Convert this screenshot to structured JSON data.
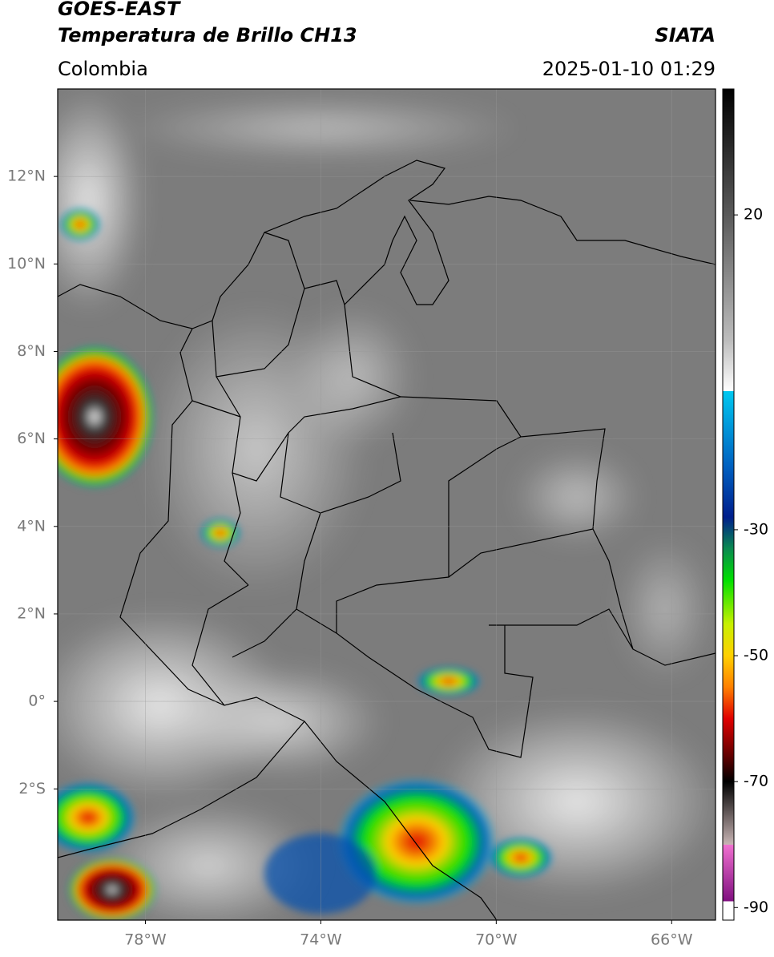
{
  "header": {
    "title": "GOES-EAST",
    "subtitle": "Temperatura de Brillo CH13",
    "source": "SIATA",
    "region": "Colombia",
    "datetime": "2025-01-10 01:29"
  },
  "map": {
    "xlim": [
      -80,
      -65
    ],
    "ylim": [
      -5,
      14
    ],
    "xticks": [
      {
        "value": -78,
        "label": "78°W"
      },
      {
        "value": -74,
        "label": "74°W"
      },
      {
        "value": -70,
        "label": "70°W"
      },
      {
        "value": -66,
        "label": "66°W"
      }
    ],
    "yticks": [
      {
        "value": 12,
        "label": "12°N"
      },
      {
        "value": 10,
        "label": "10°N"
      },
      {
        "value": 8,
        "label": "8°N"
      },
      {
        "value": 6,
        "label": "6°N"
      },
      {
        "value": 4,
        "label": "4°N"
      },
      {
        "value": 2,
        "label": "2°N"
      },
      {
        "value": 0,
        "label": "0°"
      },
      {
        "value": -2,
        "label": "2°S"
      }
    ],
    "grid": true
  },
  "colorbar": {
    "clim": [
      -92,
      40
    ],
    "ticks": [
      20,
      -30,
      -50,
      -70,
      -90
    ],
    "stops": [
      {
        "value": 40,
        "color": "#000000"
      },
      {
        "value": 20,
        "color": "#5a5a5a"
      },
      {
        "value": 0,
        "color": "#bdbdbd"
      },
      {
        "value": -8,
        "color": "#ffffff"
      },
      {
        "value": -8.01,
        "color": "#00c8f0"
      },
      {
        "value": -20,
        "color": "#0060c0"
      },
      {
        "value": -28,
        "color": "#001e8c"
      },
      {
        "value": -33,
        "color": "#0a8a50"
      },
      {
        "value": -38,
        "color": "#00e000"
      },
      {
        "value": -45,
        "color": "#c8f000"
      },
      {
        "value": -50,
        "color": "#ffd000"
      },
      {
        "value": -55,
        "color": "#ff8000"
      },
      {
        "value": -60,
        "color": "#e00000"
      },
      {
        "value": -66,
        "color": "#600000"
      },
      {
        "value": -70,
        "color": "#000000"
      },
      {
        "value": -80,
        "color": "#c8b4b4"
      },
      {
        "value": -80.01,
        "color": "#f070d0"
      },
      {
        "value": -89,
        "color": "#801080"
      },
      {
        "value": -89.01,
        "color": "#ffffff"
      },
      {
        "value": -92,
        "color": "#ffffff"
      }
    ]
  }
}
